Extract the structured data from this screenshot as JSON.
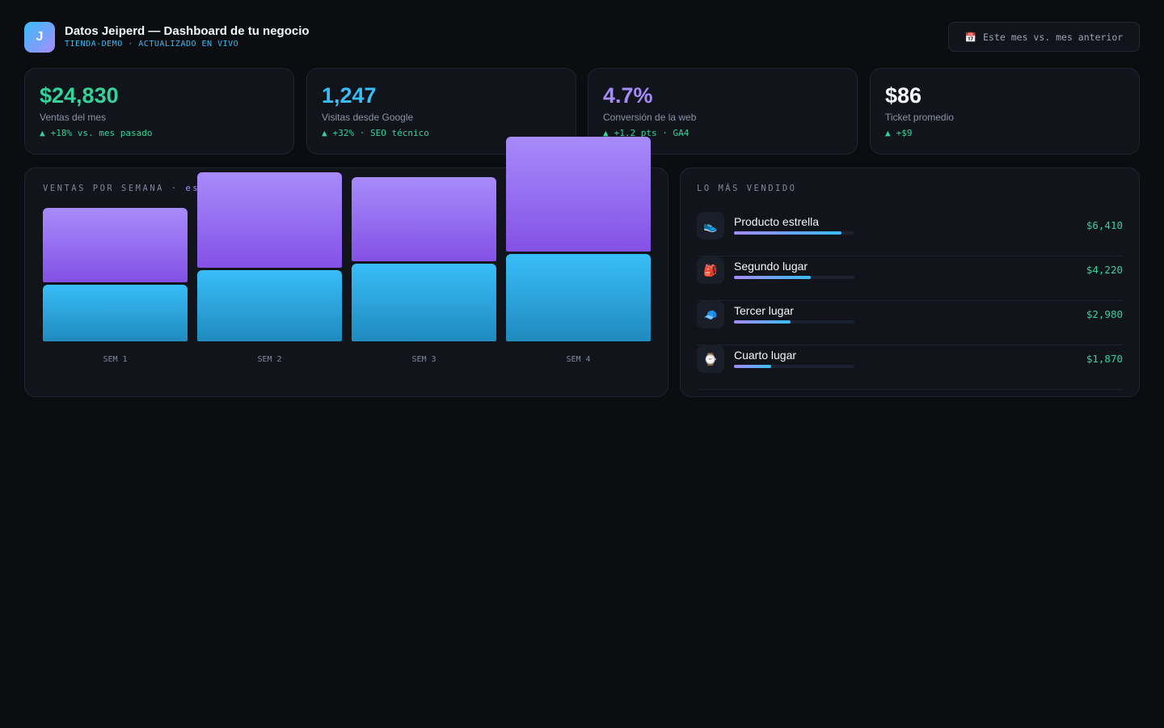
{
  "header": {
    "logo": "J",
    "title": "Datos Jeiperd — Dashboard de tu negocio",
    "subtitle": "TIENDA-DEMO · ACTUALIZADO EN VIVO",
    "button_icon": "📅",
    "button": "Este mes vs. mes anterior"
  },
  "kpis": [
    {
      "value": "$24,830",
      "label": "Ventas del mes",
      "arrow": "▲",
      "delta": "+18% vs. mes pasado",
      "color": "#34d399"
    },
    {
      "value": "1,247",
      "label": "Visitas desde Google",
      "arrow": "▲",
      "delta": "+32% · SEO técnico",
      "color": "#38bdf8"
    },
    {
      "value": "4.7%",
      "label": "Conversión de la web",
      "arrow": "▲",
      "delta": "+1.2 pts · GA4",
      "color": "#a78bfa"
    },
    {
      "value": "$86",
      "label": "Ticket promedio",
      "arrow": "▲",
      "delta": "+$9",
      "color": "#f5f7fb"
    }
  ],
  "chart_data": {
    "type": "bar",
    "title": "VENTAS POR SEMANA ·",
    "title_highlight": "est",
    "categories": [
      "SEM 1",
      "SEM 2",
      "SEM 3",
      "SEM 4"
    ],
    "series": [
      {
        "color": "#38bdf8",
        "values": [
          70,
          88,
          96,
          108
        ]
      },
      {
        "color": "#a78bfa",
        "values": [
          92,
          118,
          104,
          142
        ]
      }
    ]
  },
  "products": {
    "title": "LO MÁS VENDIDO",
    "items": [
      {
        "icon": "👟",
        "name": "Producto estrella",
        "share": 89,
        "price": "$6,410"
      },
      {
        "icon": "🎒",
        "name": "Segundo lugar",
        "share": 64,
        "price": "$4,220"
      },
      {
        "icon": "🧢",
        "name": "Tercer lugar",
        "share": 47,
        "price": "$2,980"
      },
      {
        "icon": "⌚",
        "name": "Cuarto lugar",
        "share": 31,
        "price": "$1,870"
      }
    ]
  }
}
